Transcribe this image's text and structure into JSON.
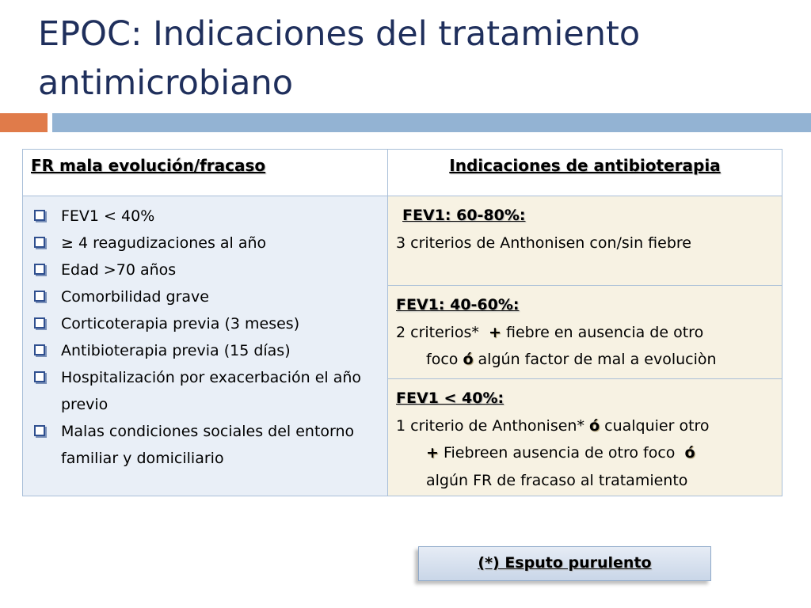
{
  "slide": {
    "title": "EPOC: Indicaciones del tratamiento antimicrobiano"
  },
  "table": {
    "headers": {
      "left": "FR mala evolución/fracaso",
      "right": "Indicaciones de antibioterapia"
    },
    "risk_factors": [
      "FEV1 < 40%",
      "≥ 4 reagudizaciones al año",
      "Edad >70 años",
      "Comorbilidad grave",
      "Corticoterapia previa (3 meses)",
      "Antibioterapia previa (15 días)",
      "Hospitalización por exacerbación el  año previo",
      "Malas condiciones sociales del entorno familiar y domiciliario"
    ],
    "indications": {
      "fev1_60_80": {
        "heading": "FEV1: 60-80%:",
        "line1": "3 criterios de Anthonisen con/sin fiebre"
      },
      "fev1_40_60": {
        "heading": "FEV1: 40-60%:",
        "line1a": "2 criterios*",
        "plus": "+",
        "line1b": " fiebre en ausencia de otro",
        "line2a": "foco",
        "or": "ó",
        "line2b": " algún factor de mal a evoluciòn"
      },
      "fev1_lt_40": {
        "heading": "FEV1 < 40%:",
        "line1a": "1 criterio de Anthonisen*",
        "or1": "ó",
        "line1b": " cualquier otro",
        "plus": "+",
        "line2a": " Fiebreen ausencia de otro foco",
        "or2": "ó",
        "line3": "algún FR de fracaso al tratamiento"
      }
    }
  },
  "footnote": "(*) Esputo purulento",
  "icons": {
    "bullet": "checkbox-bullet-icon",
    "plus": "plus-icon",
    "or": "o-symbol-icon"
  },
  "colors": {
    "title": "#1f2f5c",
    "accent_orange": "#e07b4a",
    "accent_blue": "#93b3d3",
    "left_cell_bg": "#e9eff7",
    "right_cell_bg": "#f7f2e3"
  }
}
